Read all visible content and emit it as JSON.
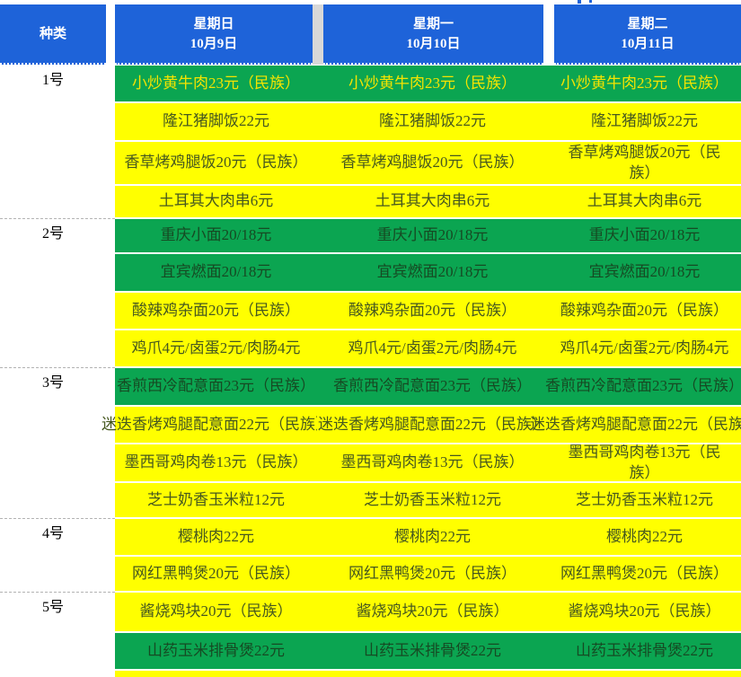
{
  "colors": {
    "header_blue": "#1E63D9",
    "cell_green": "#0BA551",
    "cell_yellow": "#FFFF00",
    "ink_yellow": "#F5E400",
    "ink_olive": "#46581F",
    "ink_dark_green": "#164A23",
    "header_text": "#FFFFFF",
    "category_text": "#000000",
    "gap_gray": "#D8D8D8",
    "triangle_green": "#1E8E3E"
  },
  "header": {
    "category_label": "种类",
    "days": [
      {
        "weekday": "星期日",
        "date": "10月9日"
      },
      {
        "weekday": "星期一",
        "date": "10月10日"
      },
      {
        "weekday": "星期二",
        "date": "10月11日"
      }
    ]
  },
  "sections": [
    {
      "label": "1号",
      "rows": [
        {
          "text": "小炒黄牛肉23元（民族）",
          "bg": "green",
          "ink": "yellow"
        },
        {
          "text": "隆江猪脚饭22元",
          "bg": "yellow",
          "ink": "olive"
        },
        {
          "text": "香草烤鸡腿饭20元（民族）",
          "bg": "yellow",
          "ink": "olive"
        },
        {
          "text": "土耳其大肉串6元",
          "bg": "yellow",
          "ink": "olive"
        }
      ]
    },
    {
      "label": "2号",
      "rows": [
        {
          "text": "重庆小面20/18元",
          "bg": "green",
          "ink": "darkgreen"
        },
        {
          "text": "宜宾燃面20/18元",
          "bg": "green",
          "ink": "darkgreen"
        },
        {
          "text": "酸辣鸡杂面20元（民族）",
          "bg": "yellow",
          "ink": "olive"
        },
        {
          "text": "鸡爪4元/卤蛋2元/肉肠4元",
          "bg": "yellow",
          "ink": "olive",
          "force_wrap_last": true
        }
      ]
    },
    {
      "label": "3号",
      "rows": [
        {
          "text": "香煎西冷配意面23元（民族）",
          "bg": "green",
          "ink": "darkgreen",
          "nowrap": true
        },
        {
          "text": "迷迭香烤鸡腿配意面22元（民族）",
          "bg": "yellow",
          "ink": "olive",
          "nowrap": true
        },
        {
          "text": "墨西哥鸡肉卷13元（民族）",
          "bg": "yellow",
          "ink": "olive"
        },
        {
          "text": "芝士奶香玉米粒12元",
          "bg": "yellow",
          "ink": "olive"
        }
      ]
    },
    {
      "label": "4号",
      "rows": [
        {
          "text": "樱桃肉22元",
          "bg": "yellow",
          "ink": "olive"
        },
        {
          "text": "网红黑鸭煲20元（民族）",
          "bg": "yellow",
          "ink": "olive"
        }
      ]
    },
    {
      "label": "5号",
      "rows": [
        {
          "text": "酱烧鸡块20元（民族）",
          "bg": "yellow",
          "ink": "olive"
        },
        {
          "text": "山药玉米排骨煲22元",
          "bg": "green",
          "ink": "darkgreen"
        },
        {
          "text": "",
          "bg": "yellow",
          "ink": "olive"
        }
      ]
    }
  ]
}
